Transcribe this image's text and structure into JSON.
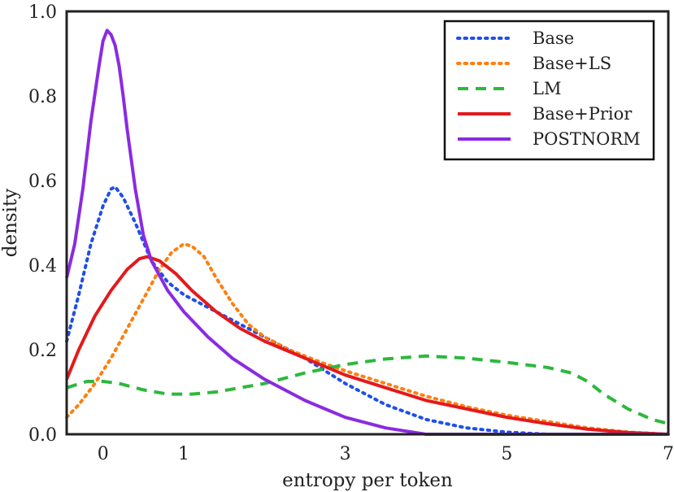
{
  "chart_data": {
    "type": "line",
    "title": "",
    "xlabel": "entropy per token",
    "ylabel": "density",
    "xlim": [
      -0.45,
      7.0
    ],
    "ylim": [
      0.0,
      1.0
    ],
    "x_ticks": [
      0,
      1,
      3,
      5,
      7
    ],
    "y_ticks": [
      0.0,
      0.2,
      0.4,
      0.6,
      0.8,
      1.0
    ],
    "x_tick_labels": [
      "0",
      "1",
      "3",
      "5",
      "7"
    ],
    "y_tick_labels": [
      "0.0",
      "0.2",
      "0.4",
      "0.6",
      "0.8",
      "1.0"
    ],
    "grid": false,
    "legend_position": "top-right",
    "series": [
      {
        "name": "Base",
        "color": "#1f4fe8",
        "style": "dotted",
        "points": [
          [
            -0.45,
            0.22
          ],
          [
            -0.3,
            0.33
          ],
          [
            -0.15,
            0.45
          ],
          [
            0.0,
            0.54
          ],
          [
            0.1,
            0.58
          ],
          [
            0.15,
            0.585
          ],
          [
            0.25,
            0.56
          ],
          [
            0.4,
            0.5
          ],
          [
            0.6,
            0.41
          ],
          [
            0.8,
            0.36
          ],
          [
            1.0,
            0.33
          ],
          [
            1.3,
            0.3
          ],
          [
            1.6,
            0.27
          ],
          [
            2.0,
            0.23
          ],
          [
            2.5,
            0.18
          ],
          [
            3.0,
            0.12
          ],
          [
            3.5,
            0.07
          ],
          [
            4.0,
            0.035
          ],
          [
            4.5,
            0.015
          ],
          [
            5.0,
            0.005
          ],
          [
            5.5,
            0.0
          ],
          [
            7.0,
            0.0
          ]
        ]
      },
      {
        "name": "Base+LS",
        "color": "#ff7f0e",
        "style": "dotted",
        "points": [
          [
            -0.45,
            0.04
          ],
          [
            -0.3,
            0.07
          ],
          [
            -0.1,
            0.12
          ],
          [
            0.1,
            0.18
          ],
          [
            0.3,
            0.25
          ],
          [
            0.5,
            0.32
          ],
          [
            0.7,
            0.39
          ],
          [
            0.85,
            0.43
          ],
          [
            1.0,
            0.45
          ],
          [
            1.1,
            0.445
          ],
          [
            1.25,
            0.42
          ],
          [
            1.4,
            0.37
          ],
          [
            1.6,
            0.31
          ],
          [
            1.8,
            0.26
          ],
          [
            2.0,
            0.23
          ],
          [
            2.3,
            0.2
          ],
          [
            2.7,
            0.17
          ],
          [
            3.0,
            0.15
          ],
          [
            3.5,
            0.12
          ],
          [
            4.0,
            0.09
          ],
          [
            4.5,
            0.065
          ],
          [
            5.0,
            0.045
          ],
          [
            5.5,
            0.03
          ],
          [
            6.0,
            0.015
          ],
          [
            6.5,
            0.005
          ],
          [
            7.0,
            0.0
          ]
        ]
      },
      {
        "name": "LM",
        "color": "#2db83d",
        "style": "dashed",
        "points": [
          [
            -0.45,
            0.11
          ],
          [
            -0.2,
            0.125
          ],
          [
            0.0,
            0.125
          ],
          [
            0.2,
            0.12
          ],
          [
            0.5,
            0.105
          ],
          [
            0.8,
            0.095
          ],
          [
            1.1,
            0.095
          ],
          [
            1.4,
            0.1
          ],
          [
            1.7,
            0.11
          ],
          [
            2.0,
            0.12
          ],
          [
            2.5,
            0.145
          ],
          [
            3.0,
            0.165
          ],
          [
            3.5,
            0.178
          ],
          [
            4.0,
            0.185
          ],
          [
            4.5,
            0.18
          ],
          [
            5.0,
            0.17
          ],
          [
            5.5,
            0.158
          ],
          [
            5.8,
            0.145
          ],
          [
            6.0,
            0.125
          ],
          [
            6.2,
            0.095
          ],
          [
            6.5,
            0.06
          ],
          [
            6.8,
            0.035
          ],
          [
            7.0,
            0.025
          ]
        ]
      },
      {
        "name": "Base+Prior",
        "color": "#e31a1c",
        "style": "solid",
        "points": [
          [
            -0.45,
            0.13
          ],
          [
            -0.3,
            0.2
          ],
          [
            -0.1,
            0.28
          ],
          [
            0.1,
            0.34
          ],
          [
            0.3,
            0.39
          ],
          [
            0.45,
            0.415
          ],
          [
            0.55,
            0.42
          ],
          [
            0.7,
            0.41
          ],
          [
            0.9,
            0.38
          ],
          [
            1.1,
            0.34
          ],
          [
            1.4,
            0.29
          ],
          [
            1.7,
            0.25
          ],
          [
            2.0,
            0.22
          ],
          [
            2.5,
            0.18
          ],
          [
            3.0,
            0.14
          ],
          [
            3.5,
            0.11
          ],
          [
            4.0,
            0.08
          ],
          [
            4.5,
            0.06
          ],
          [
            5.0,
            0.04
          ],
          [
            5.5,
            0.025
          ],
          [
            6.0,
            0.012
          ],
          [
            6.5,
            0.004
          ],
          [
            7.0,
            0.0
          ]
        ]
      },
      {
        "name": "POSTNORM",
        "color": "#8a2be2",
        "style": "solid",
        "points": [
          [
            -0.45,
            0.37
          ],
          [
            -0.35,
            0.45
          ],
          [
            -0.25,
            0.58
          ],
          [
            -0.15,
            0.74
          ],
          [
            -0.05,
            0.87
          ],
          [
            0.0,
            0.93
          ],
          [
            0.05,
            0.955
          ],
          [
            0.1,
            0.945
          ],
          [
            0.15,
            0.92
          ],
          [
            0.2,
            0.87
          ],
          [
            0.25,
            0.8
          ],
          [
            0.3,
            0.72
          ],
          [
            0.4,
            0.58
          ],
          [
            0.5,
            0.47
          ],
          [
            0.6,
            0.41
          ],
          [
            0.8,
            0.34
          ],
          [
            1.0,
            0.29
          ],
          [
            1.3,
            0.23
          ],
          [
            1.6,
            0.18
          ],
          [
            2.0,
            0.13
          ],
          [
            2.5,
            0.08
          ],
          [
            3.0,
            0.04
          ],
          [
            3.5,
            0.015
          ],
          [
            4.0,
            0.0
          ],
          [
            7.0,
            0.0
          ]
        ]
      }
    ]
  }
}
